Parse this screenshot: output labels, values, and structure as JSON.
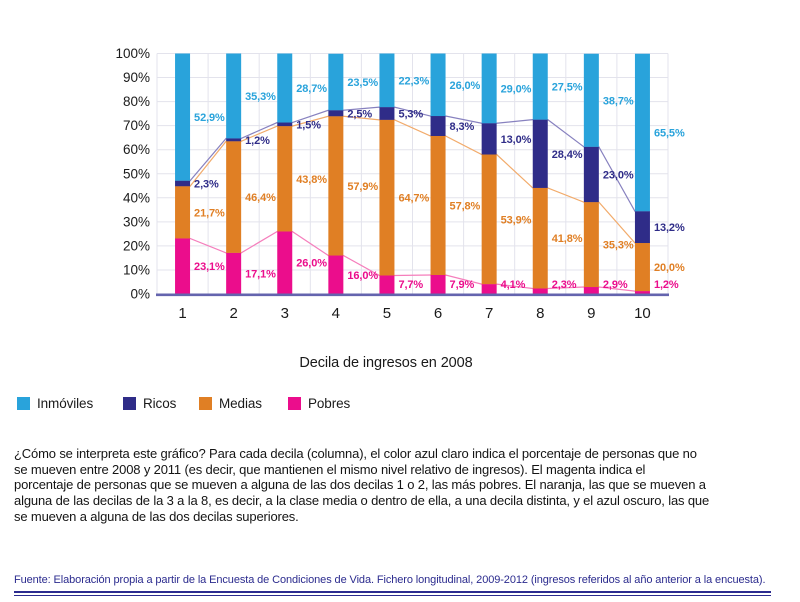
{
  "chart_data": {
    "type": "bar",
    "stacked": true,
    "xlabel": "Decila de ingresos en 2008",
    "ylabel": "",
    "ylim": [
      0,
      100
    ],
    "grid": true,
    "legend_position": "bottom-left",
    "ytick_labels": [
      "0%",
      "10%",
      "20%",
      "30%",
      "40%",
      "50%",
      "60%",
      "70%",
      "80%",
      "90%",
      "100%"
    ],
    "categories": [
      "1",
      "2",
      "3",
      "4",
      "5",
      "6",
      "7",
      "8",
      "9",
      "10"
    ],
    "series": [
      {
        "name": "Pobres",
        "color": "#EB0D8C",
        "connector_color": "#F57EBC",
        "values": [
          23.1,
          17.1,
          26.0,
          16.0,
          7.7,
          7.9,
          4.1,
          2.3,
          2.9,
          1.2
        ],
        "labels": [
          "23,1%",
          "17,1%",
          "26,0%",
          "16,0%",
          "7,7%",
          "7,9%",
          "4,1%",
          "2,3%",
          "2,9%",
          "1,2%"
        ]
      },
      {
        "name": "Medias",
        "color": "#E07F24",
        "connector_color": "#F2AB6B",
        "values": [
          21.7,
          46.4,
          43.8,
          57.9,
          64.7,
          57.8,
          53.9,
          41.8,
          35.3,
          20.0
        ],
        "labels": [
          "21,7%",
          "46,4%",
          "43,8%",
          "57,9%",
          "64,7%",
          "57,8%",
          "53,9%",
          "41,8%",
          "35,3%",
          "20,0%"
        ]
      },
      {
        "name": "Ricos",
        "color": "#2F2C88",
        "connector_color": "#8781BF",
        "values": [
          2.3,
          1.2,
          1.5,
          2.5,
          5.3,
          8.3,
          13.0,
          28.4,
          23.0,
          13.2
        ],
        "labels": [
          "2,3%",
          "1,2%",
          "1,5%",
          "2,5%",
          "5,3%",
          "8,3%",
          "13,0%",
          "28,4%",
          "23,0%",
          "13,2%"
        ]
      },
      {
        "name": "Inmóviles",
        "color": "#29A3DB",
        "values": [
          52.9,
          35.3,
          28.7,
          23.5,
          22.3,
          26.0,
          29.0,
          27.5,
          38.7,
          65.5
        ],
        "labels": [
          "52,9%",
          "35,3%",
          "28,7%",
          "23,5%",
          "22,3%",
          "26,0%",
          "29,0%",
          "27,5%",
          "38,7%",
          "65,5%"
        ]
      }
    ],
    "legend": [
      {
        "label": "Inmóviles",
        "color": "#29A3DB"
      },
      {
        "label": "Ricos",
        "color": "#2F2C88"
      },
      {
        "label": "Medias",
        "color": "#E07F24"
      },
      {
        "label": "Pobres",
        "color": "#EB0D8C"
      }
    ]
  },
  "colors": {
    "gridline": "#E3E3EC",
    "baseline": "#6464AE",
    "tick_text": "#1a1a1a",
    "footer": "#2b2b8e"
  },
  "description": {
    "lines": [
      "¿Cómo se interpreta este gráfico? Para cada decila (columna), el color azul claro indica el porcentaje de personas que no",
      "se mueven entre 2008 y 2011 (es decir, que mantienen el mismo nivel relativo de ingresos). El magenta indica el",
      "porcentaje de personas que se mueven a alguna de las dos decilas 1 o 2, las más pobres. El naranja, las que se mueven a",
      "alguna de las decilas de la 3 a la 8, es decir, a la clase media o dentro de ella, a una decila distinta, y el azul oscuro, las que",
      "se mueven a alguna de las dos decilas superiores."
    ]
  },
  "footer": {
    "source": "Fuente: Elaboración propia a partir de la Encuesta de Condiciones de Vida. Fichero longitudinal, 2009-2012 (ingresos referidos al año anterior a la encuesta)."
  }
}
